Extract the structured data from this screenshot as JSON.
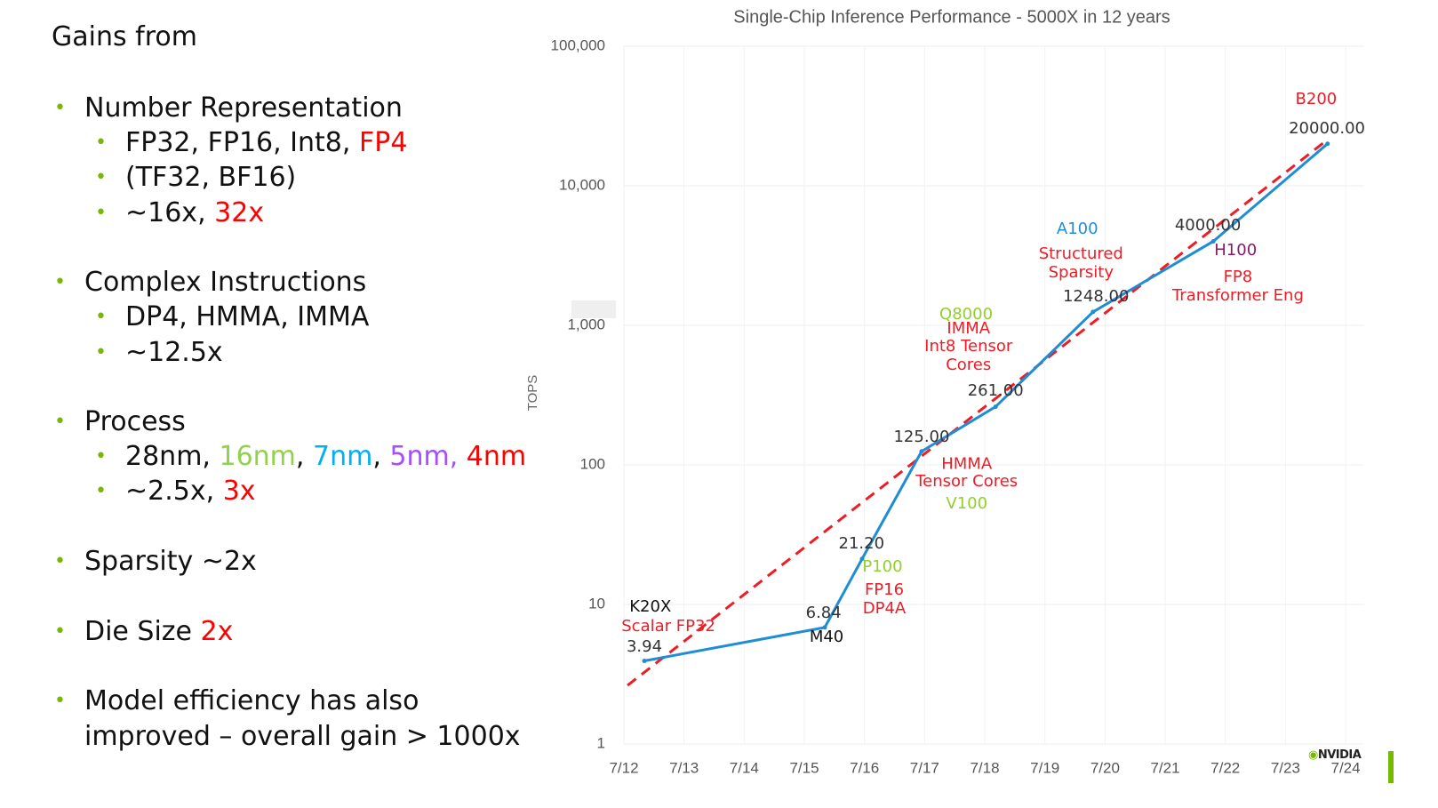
{
  "slide": {
    "heading": "Gains from",
    "items": [
      {
        "level": 1,
        "segments": [
          {
            "text": "Number Representation",
            "color": "#111111"
          }
        ]
      },
      {
        "level": 2,
        "segments": [
          {
            "text": "FP32, FP16, Int8, ",
            "color": "#111111"
          },
          {
            "text": "FP4",
            "color": "#ff0000"
          }
        ]
      },
      {
        "level": 2,
        "segments": [
          {
            "text": "(TF32, BF16)",
            "color": "#111111"
          }
        ]
      },
      {
        "level": 2,
        "segments": [
          {
            "text": "~16x, ",
            "color": "#111111"
          },
          {
            "text": "32x",
            "color": "#ff0000"
          }
        ]
      },
      {
        "level": 1,
        "segments": [
          {
            "text": "Complex Instructions",
            "color": "#111111"
          }
        ]
      },
      {
        "level": 2,
        "segments": [
          {
            "text": "DP4, HMMA, IMMA",
            "color": "#111111"
          }
        ]
      },
      {
        "level": 2,
        "segments": [
          {
            "text": "~12.5x",
            "color": "#111111"
          }
        ]
      },
      {
        "level": 1,
        "segments": [
          {
            "text": "Process",
            "color": "#111111"
          }
        ]
      },
      {
        "level": 2,
        "segments": [
          {
            "text": "28nm, ",
            "color": "#111111"
          },
          {
            "text": "16nm",
            "color": "#92d050"
          },
          {
            "text": ", ",
            "color": "#111111"
          },
          {
            "text": "7nm",
            "color": "#00b0f0"
          },
          {
            "text": ", ",
            "color": "#111111"
          },
          {
            "text": "5nm, ",
            "color": "#a64dff"
          },
          {
            "text": "4nm",
            "color": "#ff0000"
          }
        ]
      },
      {
        "level": 2,
        "segments": [
          {
            "text": "~2.5x, ",
            "color": "#111111"
          },
          {
            "text": "3x",
            "color": "#ff0000"
          }
        ]
      },
      {
        "level": 1,
        "segments": [
          {
            "text": "Sparsity  ~2x",
            "color": "#111111"
          }
        ]
      },
      {
        "level": 1,
        "segments": [
          {
            "text": " Die Size ",
            "color": "#111111"
          },
          {
            "text": "2x",
            "color": "#ff0000"
          }
        ]
      },
      {
        "level": 1,
        "segments": [
          {
            "text": "Model efficiency has also",
            "color": "#111111"
          }
        ]
      },
      {
        "level": 0,
        "segments": [
          {
            "text": "improved – overall gain > 1000x",
            "color": "#111111"
          }
        ]
      }
    ],
    "bullet_color": "#76b900",
    "logo_text": "NVIDIA"
  },
  "chart_data": {
    "type": "line",
    "title": "Single-Chip Inference Performance - 5000X in 12 years",
    "xlabel": "",
    "ylabel": "TOPS",
    "yscale": "log",
    "ylim": [
      1,
      100000
    ],
    "xlim": [
      12,
      24
    ],
    "yticks": [
      {
        "v": 1,
        "label": "1"
      },
      {
        "v": 10,
        "label": "10"
      },
      {
        "v": 100,
        "label": "100"
      },
      {
        "v": 1000,
        "label": "1,000"
      },
      {
        "v": 10000,
        "label": "10,000"
      },
      {
        "v": 100000,
        "label": "100,000"
      }
    ],
    "xticks": [
      {
        "v": 12,
        "label": "7/12"
      },
      {
        "v": 13,
        "label": "7/13"
      },
      {
        "v": 14,
        "label": "7/14"
      },
      {
        "v": 15,
        "label": "7/15"
      },
      {
        "v": 16,
        "label": "7/16"
      },
      {
        "v": 17,
        "label": "7/17"
      },
      {
        "v": 18,
        "label": "7/18"
      },
      {
        "v": 19,
        "label": "7/19"
      },
      {
        "v": 20,
        "label": "7/20"
      },
      {
        "v": 21,
        "label": "7/21"
      },
      {
        "v": 22,
        "label": "7/22"
      },
      {
        "v": 23,
        "label": "7/23"
      },
      {
        "v": 24,
        "label": "7/24"
      }
    ],
    "grid": true,
    "series": [
      {
        "name": "Performance",
        "color": "#1f8dd6",
        "style": "solid",
        "points": [
          {
            "x": 12.34,
            "y": 3.94
          },
          {
            "x": 15.34,
            "y": 6.84
          },
          {
            "x": 15.96,
            "y": 21.2
          },
          {
            "x": 16.95,
            "y": 125
          },
          {
            "x": 18.18,
            "y": 261
          },
          {
            "x": 19.8,
            "y": 1248
          },
          {
            "x": 21.8,
            "y": 4000
          },
          {
            "x": 23.7,
            "y": 20000
          }
        ]
      },
      {
        "name": "Trend",
        "color": "#ee1c25",
        "style": "dashed",
        "points": [
          {
            "x": 12.06,
            "y": 2.63
          },
          {
            "x": 23.7,
            "y": 21400
          }
        ]
      }
    ],
    "annotations": [
      {
        "text": "K20X",
        "x": 12.44,
        "y": 9.57,
        "color": "#111111"
      },
      {
        "text": "Scalar FP32",
        "x": 12.74,
        "y": 6.93,
        "color": "#ee1c25"
      },
      {
        "text": "3.94",
        "x": 12.34,
        "y": 4.95,
        "color": "#333333"
      },
      {
        "text": "6.84",
        "x": 15.32,
        "y": 8.64,
        "color": "#333333"
      },
      {
        "text": "M40",
        "x": 15.37,
        "y": 5.81,
        "color": "#111111"
      },
      {
        "text": "21.20",
        "x": 15.95,
        "y": 27.1,
        "color": "#333333"
      },
      {
        "text": "P100",
        "x": 16.3,
        "y": 18.5,
        "color": "#8fd129"
      },
      {
        "text": "FP16",
        "x": 16.33,
        "y": 12.6,
        "color": "#ee1c25"
      },
      {
        "text": "DP4A",
        "x": 16.33,
        "y": 9.3,
        "color": "#ee1c25"
      },
      {
        "text": "125.00",
        "x": 16.95,
        "y": 157,
        "color": "#333333"
      },
      {
        "text": "HMMA",
        "x": 17.7,
        "y": 101,
        "color": "#ee1c25"
      },
      {
        "text": "Tensor Cores",
        "x": 17.7,
        "y": 75.7,
        "color": "#ee1c25"
      },
      {
        "text": "V100",
        "x": 17.7,
        "y": 52.5,
        "color": "#8fd129"
      },
      {
        "text": "261.00",
        "x": 18.18,
        "y": 338,
        "color": "#333333"
      },
      {
        "text": "Q8000",
        "x": 17.69,
        "y": 1193,
        "color": "#8fd129"
      },
      {
        "text": "IMMA",
        "x": 17.73,
        "y": 944,
        "color": "#ee1c25"
      },
      {
        "text": "Int8 Tensor",
        "x": 17.73,
        "y": 703,
        "color": "#ee1c25"
      },
      {
        "text": "Cores",
        "x": 17.73,
        "y": 517,
        "color": "#ee1c25"
      },
      {
        "text": "1248.00",
        "x": 19.85,
        "y": 1600,
        "color": "#333333"
      },
      {
        "text": "A100",
        "x": 19.54,
        "y": 4875,
        "color": "#1f8dd6"
      },
      {
        "text": "Structured",
        "x": 19.6,
        "y": 3235,
        "color": "#ee1c25"
      },
      {
        "text": "Sparsity",
        "x": 19.6,
        "y": 2377,
        "color": "#ee1c25"
      },
      {
        "text": "4000.00",
        "x": 21.71,
        "y": 5166,
        "color": "#333333"
      },
      {
        "text": "H100",
        "x": 22.17,
        "y": 3428,
        "color": "#8b1a6b"
      },
      {
        "text": "FP8",
        "x": 22.21,
        "y": 2208,
        "color": "#ee1c25"
      },
      {
        "text": "Transformer Eng",
        "x": 22.21,
        "y": 1622,
        "color": "#ee1c25"
      },
      {
        "text": "B200",
        "x": 23.51,
        "y": 41500,
        "color": "#ee1c25"
      },
      {
        "text": "20000.00",
        "x": 23.69,
        "y": 25580,
        "color": "#333333"
      }
    ]
  }
}
